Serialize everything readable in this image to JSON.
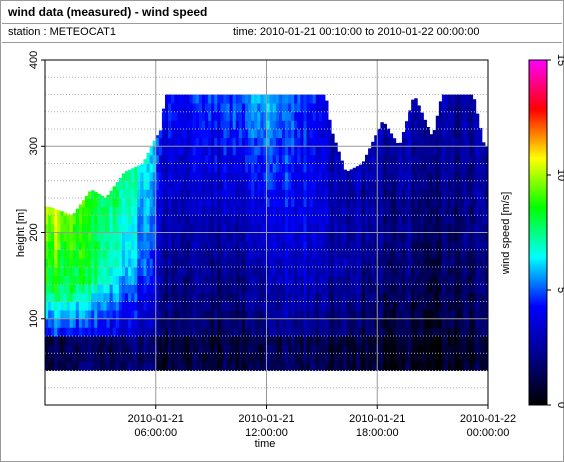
{
  "header": {
    "title": "wind data (measured) - wind speed",
    "station": "station : METEOCAT1",
    "time_range": "time: 2010-01-21 00:10:00 to 2010-01-22 00:00:00"
  },
  "chart_data": {
    "type": "heatmap",
    "xlabel": "time",
    "ylabel": "height [m]",
    "colorbar_label": "wind speed [m/s]",
    "xlim": [
      0,
      24
    ],
    "ylim": [
      0,
      400
    ],
    "clim": [
      0,
      15
    ],
    "grid": true,
    "x_ticks": [
      {
        "value": 6,
        "line1": "2010-01-21",
        "line2": "06:00:00"
      },
      {
        "value": 12,
        "line1": "2010-01-21",
        "line2": "12:00:00"
      },
      {
        "value": 18,
        "line1": "2010-01-21",
        "line2": "18:00:00"
      },
      {
        "value": 24,
        "line1": "2010-01-22",
        "line2": "00:00:00"
      }
    ],
    "y_ticks": [
      100,
      200,
      300,
      400
    ],
    "colorbar_ticks": [
      0,
      5,
      10,
      15
    ],
    "colormap": [
      "#000000",
      "#00008b",
      "#0000ff",
      "#00ffff",
      "#00ff00",
      "#ffff00",
      "#ff0000",
      "#ff00ff"
    ],
    "time_step_hours": 0.1667,
    "height_min": 40,
    "height_step": 10,
    "profile_top_m": [
      {
        "t": 0.2,
        "h": 230
      },
      {
        "t": 1.5,
        "h": 220
      },
      {
        "t": 2.5,
        "h": 250
      },
      {
        "t": 3.3,
        "h": 240
      },
      {
        "t": 4.3,
        "h": 270
      },
      {
        "t": 5.3,
        "h": 280
      },
      {
        "t": 6.0,
        "h": 310
      },
      {
        "t": 6.3,
        "h": 320
      },
      {
        "t": 6.5,
        "h": 360
      },
      {
        "t": 15.2,
        "h": 360
      },
      {
        "t": 15.5,
        "h": 320
      },
      {
        "t": 16.3,
        "h": 270
      },
      {
        "t": 17.2,
        "h": 280
      },
      {
        "t": 18.3,
        "h": 330
      },
      {
        "t": 19.2,
        "h": 300
      },
      {
        "t": 20.0,
        "h": 360
      },
      {
        "t": 21.0,
        "h": 310
      },
      {
        "t": 21.5,
        "h": 360
      },
      {
        "t": 23.2,
        "h": 360
      },
      {
        "t": 23.8,
        "h": 300
      }
    ],
    "speed_field": [
      {
        "t": 0,
        "low": 1.5,
        "mid": 8.5,
        "high": 10.5
      },
      {
        "t": 3,
        "low": 2.0,
        "mid": 7.5,
        "high": 8.5
      },
      {
        "t": 5.5,
        "low": 2.0,
        "mid": 5.0,
        "high": 6.5
      },
      {
        "t": 6.5,
        "low": 1.5,
        "mid": 3.0,
        "high": 4.5
      },
      {
        "t": 10,
        "low": 1.0,
        "mid": 2.5,
        "high": 5.0
      },
      {
        "t": 12,
        "low": 1.5,
        "mid": 3.5,
        "high": 6.0
      },
      {
        "t": 14,
        "low": 2.0,
        "mid": 4.0,
        "high": 5.0
      },
      {
        "t": 16,
        "low": 1.0,
        "mid": 2.5,
        "high": 2.5
      },
      {
        "t": 19,
        "low": 0.8,
        "mid": 2.0,
        "high": 3.0
      },
      {
        "t": 22,
        "low": 0.8,
        "mid": 1.8,
        "high": 3.0
      },
      {
        "t": 24,
        "low": 1.0,
        "mid": 2.0,
        "high": 2.5
      }
    ]
  }
}
